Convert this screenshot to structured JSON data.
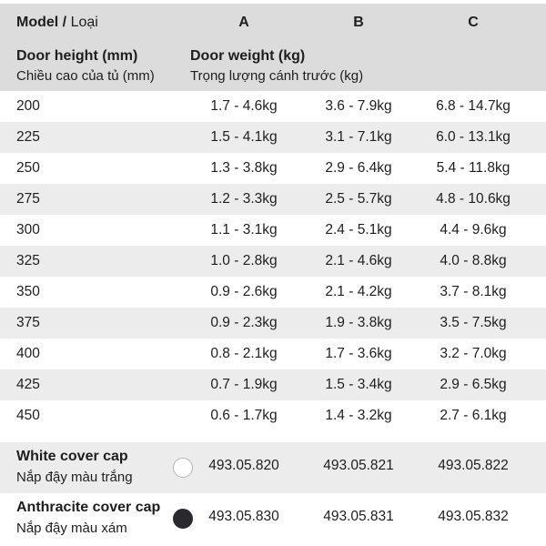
{
  "header": {
    "model_label": "Model /",
    "model_label_vi": "Loại",
    "col_a": "A",
    "col_b": "B",
    "col_c": "C"
  },
  "subheader": {
    "door_height": "Door height (mm)",
    "door_height_vi": "Chiều cao của tủ (mm)",
    "door_weight": "Door weight (kg)",
    "door_weight_vi": "Trọng lượng cánh trước (kg)"
  },
  "rows": [
    {
      "height": "200",
      "a": "1.7 - 4.6kg",
      "b": "3.6 - 7.9kg",
      "c": "6.8 - 14.7kg"
    },
    {
      "height": "225",
      "a": "1.5 - 4.1kg",
      "b": "3.1 - 7.1kg",
      "c": "6.0 - 13.1kg"
    },
    {
      "height": "250",
      "a": "1.3 - 3.8kg",
      "b": "2.9 - 6.4kg",
      "c": "5.4 - 11.8kg"
    },
    {
      "height": "275",
      "a": "1.2 - 3.3kg",
      "b": "2.5 - 5.7kg",
      "c": "4.8 - 10.6kg"
    },
    {
      "height": "300",
      "a": "1.1 - 3.1kg",
      "b": "2.4 - 5.1kg",
      "c": "4.4 - 9.6kg"
    },
    {
      "height": "325",
      "a": "1.0 - 2.8kg",
      "b": "2.1 - 4.6kg",
      "c": "4.0 - 8.8kg"
    },
    {
      "height": "350",
      "a": "0.9 - 2.6kg",
      "b": "2.1 - 4.2kg",
      "c": "3.7 - 8.1kg"
    },
    {
      "height": "375",
      "a": "0.9 - 2.3kg",
      "b": "1.9 - 3.8kg",
      "c": "3.5 - 7.5kg"
    },
    {
      "height": "400",
      "a": "0.8 - 2.1kg",
      "b": "1.7 - 3.6kg",
      "c": "3.2 - 7.0kg"
    },
    {
      "height": "425",
      "a": "0.7 - 1.9kg",
      "b": "1.5 - 3.4kg",
      "c": "2.9 - 6.5kg"
    },
    {
      "height": "450",
      "a": "0.6 - 1.7kg",
      "b": "1.4 - 3.2kg",
      "c": "2.7 - 6.1kg"
    }
  ],
  "caps": {
    "white": {
      "name": "White cover cap",
      "name_vi": "Nắp đậy màu trắng",
      "color": "#ffffff",
      "a": "493.05.820",
      "b": "493.05.821",
      "c": "493.05.822"
    },
    "anthracite": {
      "name": "Anthracite cover cap",
      "name_vi": "Nắp đậy màu xám",
      "color": "#2a2a2e",
      "a": "493.05.830",
      "b": "493.05.831",
      "c": "493.05.832"
    }
  }
}
